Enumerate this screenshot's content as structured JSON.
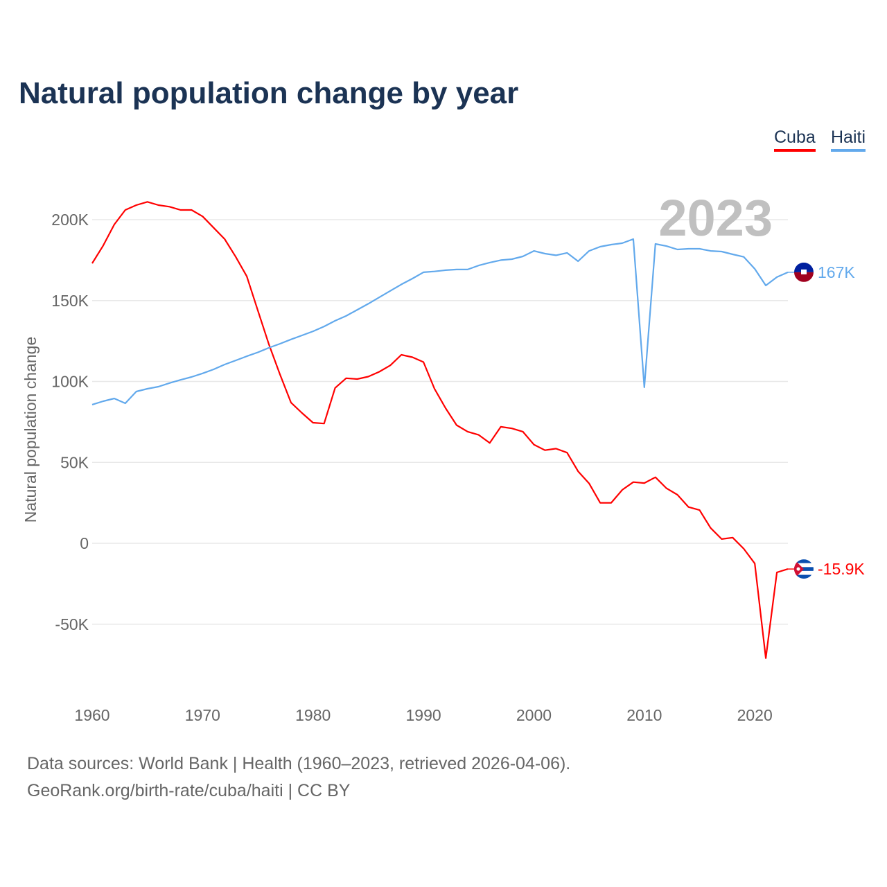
{
  "chart_data": {
    "type": "line",
    "title": "Natural population change by year",
    "xlabel": "",
    "ylabel": "Natural population change",
    "year_watermark": "2023",
    "x": [
      1960,
      1961,
      1962,
      1963,
      1964,
      1965,
      1966,
      1967,
      1968,
      1969,
      1970,
      1971,
      1972,
      1973,
      1974,
      1975,
      1976,
      1977,
      1978,
      1979,
      1980,
      1981,
      1982,
      1983,
      1984,
      1985,
      1986,
      1987,
      1988,
      1989,
      1990,
      1991,
      1992,
      1993,
      1994,
      1995,
      1996,
      1997,
      1998,
      1999,
      2000,
      2001,
      2002,
      2003,
      2004,
      2005,
      2006,
      2007,
      2008,
      2009,
      2010,
      2011,
      2012,
      2013,
      2014,
      2015,
      2016,
      2017,
      2018,
      2019,
      2020,
      2021,
      2022,
      2023
    ],
    "xlim": [
      1960,
      2023
    ],
    "ylim": [
      -90000,
      220000
    ],
    "x_ticks": [
      "1960",
      "1970",
      "1980",
      "1990",
      "2000",
      "2010",
      "2020"
    ],
    "y_ticks": [
      {
        "v": 200000,
        "label": "200K"
      },
      {
        "v": 150000,
        "label": "150K"
      },
      {
        "v": 100000,
        "label": "100K"
      },
      {
        "v": 50000,
        "label": "50K"
      },
      {
        "v": 0,
        "label": "0"
      },
      {
        "v": -50000,
        "label": "-50K"
      }
    ],
    "grid": true,
    "legend_placement": "top-right",
    "series": [
      {
        "name": "Cuba",
        "color": "#ff0000",
        "end_label": "-15.9K",
        "flag": "cuba-flag",
        "values": [
          173000,
          184000,
          197000,
          206000,
          209000,
          211000,
          209000,
          208000,
          206000,
          206000,
          202000,
          195000,
          188000,
          177000,
          165000,
          144000,
          123000,
          104500,
          87000,
          80500,
          74500,
          74000,
          96000,
          102000,
          101500,
          103000,
          106000,
          110000,
          116500,
          115000,
          112000,
          95500,
          83500,
          73000,
          69000,
          67000,
          62000,
          72000,
          71000,
          69000,
          61000,
          57500,
          58500,
          56000,
          44500,
          37000,
          25000,
          25000,
          33000,
          37800,
          37200,
          40800,
          34000,
          30000,
          22400,
          20500,
          9500,
          2600,
          3500,
          -3400,
          -12500,
          -71000,
          -18000,
          -15900
        ]
      },
      {
        "name": "Haiti",
        "color": "#62a9ec",
        "end_label": "167K",
        "flag": "haiti-flag",
        "values": [
          85700,
          87800,
          89500,
          86500,
          93800,
          95500,
          96800,
          99000,
          101000,
          102800,
          105000,
          107500,
          110500,
          113000,
          115600,
          118000,
          120800,
          123300,
          126000,
          128500,
          131000,
          134000,
          137500,
          140500,
          144300,
          148000,
          152000,
          156000,
          160000,
          163600,
          167500,
          168000,
          168800,
          169200,
          169200,
          171700,
          173500,
          175000,
          175600,
          177300,
          180700,
          179000,
          178000,
          179500,
          174300,
          180700,
          183300,
          184600,
          185500,
          188000,
          96400,
          185000,
          183700,
          181600,
          182000,
          182000,
          180700,
          180300,
          178600,
          177000,
          169600,
          159300,
          164500,
          167500
        ]
      }
    ]
  },
  "footer": {
    "line1": "Data sources: World Bank | Health (1960–2023, retrieved 2026-04-06).",
    "line2": "GeoRank.org/birth-rate/cuba/haiti | CC BY"
  }
}
